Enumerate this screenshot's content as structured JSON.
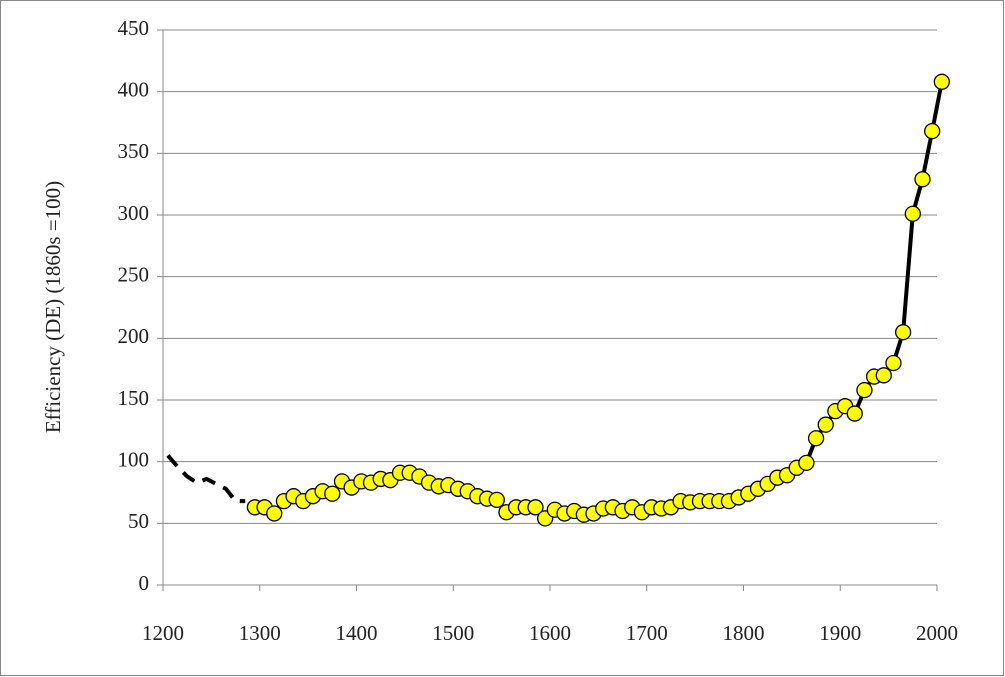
{
  "chart_data": {
    "type": "line",
    "ylabel": "Efficiency (DE) (1860s =100)",
    "xlim": [
      1200,
      2000
    ],
    "xticks": [
      1200,
      1300,
      1400,
      1500,
      1600,
      1700,
      1800,
      1900,
      2000
    ],
    "ylim": [
      0,
      450
    ],
    "yticks": [
      0,
      50,
      100,
      150,
      200,
      250,
      300,
      350,
      400,
      450
    ],
    "grid": true,
    "series": [
      {
        "color": "#000000",
        "dashed": true,
        "markers": false,
        "x": [
          1205,
          1215,
          1225,
          1235,
          1245,
          1255,
          1265,
          1275,
          1285
        ],
        "values": [
          105,
          96,
          88,
          83,
          86,
          82,
          78,
          68,
          68
        ]
      },
      {
        "color": "#000000",
        "marker_color": "#ffff00",
        "dashed": false,
        "markers": true,
        "x": [
          1295,
          1305,
          1315,
          1325,
          1335,
          1345,
          1355,
          1365,
          1375,
          1385,
          1395,
          1405,
          1415,
          1425,
          1435,
          1445,
          1455,
          1465,
          1475,
          1485,
          1495,
          1505,
          1515,
          1525,
          1535,
          1545,
          1555,
          1565,
          1575,
          1585,
          1595,
          1605,
          1615,
          1625,
          1635,
          1645,
          1655,
          1665,
          1675,
          1685,
          1695,
          1705,
          1715,
          1725,
          1735,
          1745,
          1755,
          1765,
          1775,
          1785,
          1795,
          1805,
          1815,
          1825,
          1835,
          1845,
          1855,
          1865,
          1875,
          1885,
          1895,
          1905,
          1915,
          1925,
          1935,
          1945,
          1955,
          1965,
          1975,
          1985,
          1995,
          2005
        ],
        "values": [
          63,
          63,
          58,
          68,
          72,
          68,
          72,
          76,
          74,
          84,
          79,
          84,
          83,
          86,
          85,
          91,
          91,
          88,
          83,
          80,
          81,
          78,
          76,
          72,
          70,
          69,
          59,
          63,
          63,
          63,
          54,
          61,
          58,
          60,
          57,
          58,
          62,
          63,
          60,
          63,
          59,
          63,
          62,
          63,
          68,
          67,
          68,
          68,
          68,
          68,
          71,
          74,
          78,
          82,
          87,
          89,
          95,
          99,
          119,
          130,
          141,
          145,
          139,
          158,
          169,
          170,
          180,
          205,
          301,
          329,
          368,
          408
        ]
      }
    ]
  }
}
